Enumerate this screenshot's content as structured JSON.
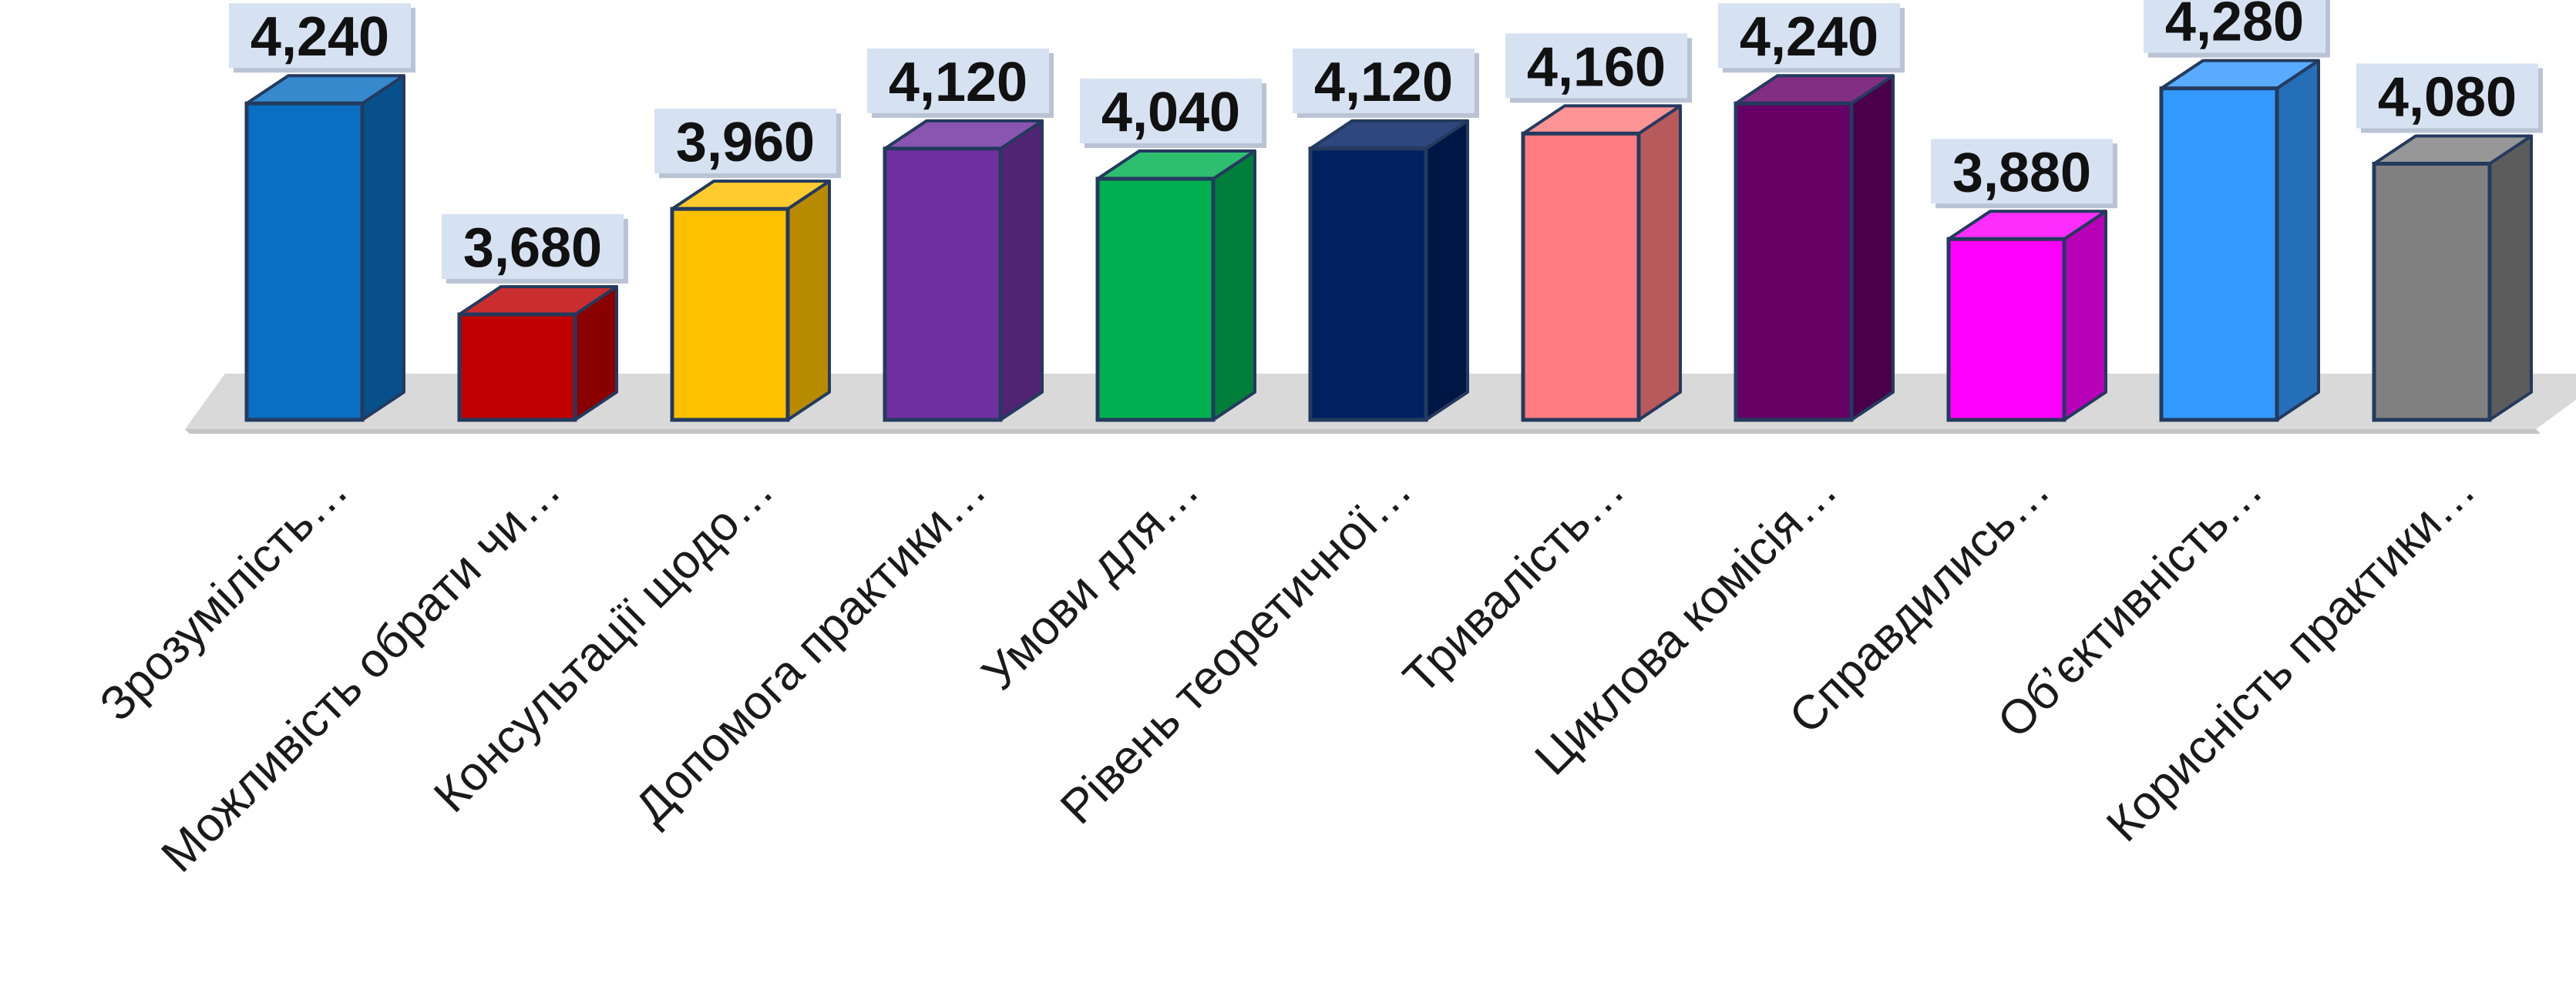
{
  "chart_data": {
    "type": "bar",
    "style": "3d-column",
    "categories": [
      "Зрозумілість…",
      "Можливість обрати чи…",
      "Консультації щодо…",
      "Допомога практики…",
      "Умови для…",
      "Рівень теоретичної…",
      "Тривалість…",
      "Циклова комісія…",
      "Справдились…",
      "Об’єктивність…",
      "Корисність практики…"
    ],
    "values": [
      4.24,
      3.68,
      3.96,
      4.12,
      4.04,
      4.12,
      4.16,
      4.24,
      3.88,
      4.28,
      4.08
    ],
    "value_labels": [
      "4,240",
      "3,680",
      "3,960",
      "4,120",
      "4,040",
      "4,120",
      "4,160",
      "4,240",
      "3,880",
      "4,280",
      "4,080"
    ],
    "colors": [
      "#0A6FC2",
      "#C00000",
      "#FFC000",
      "#7030A0",
      "#00B050",
      "#002060",
      "#FF7C80",
      "#660066",
      "#FF00FF",
      "#3399FF",
      "#808080"
    ],
    "ylim": [
      3.4,
      4.3
    ],
    "grid": false,
    "legend": "none",
    "title": "",
    "xlabel": "",
    "ylabel": ""
  }
}
